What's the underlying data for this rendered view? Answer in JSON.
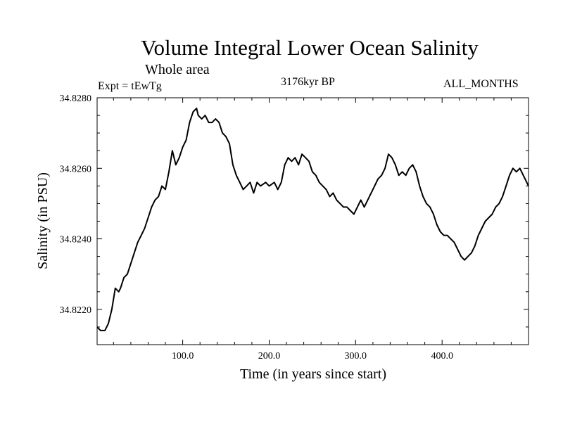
{
  "header": {
    "title": "Volume Integral Lower Ocean Salinity",
    "subtitle": "Whole area",
    "experiment": "Expt = tEwTg",
    "period": "3176kyr BP",
    "season": "ALL_MONTHS"
  },
  "chart_data": {
    "type": "line",
    "title": "Volume Integral Lower Ocean Salinity",
    "subtitle": "Whole area",
    "xlabel": "Time (in years since start)",
    "ylabel": "Salinity (in PSU)",
    "xlim": [
      1,
      500
    ],
    "ylim": [
      34.821,
      34.828
    ],
    "xticks": [
      100,
      200,
      300,
      400
    ],
    "xtick_labels": [
      "100.0",
      "200.0",
      "300.0",
      "400.0"
    ],
    "yticks": [
      34.822,
      34.824,
      34.826,
      34.828
    ],
    "ytick_labels": [
      "34.8220",
      "34.8240",
      "34.8260",
      "34.8280"
    ],
    "grid": false,
    "series": [
      {
        "name": "Salinity",
        "color": "#000000",
        "x": [
          1,
          5,
          10,
          14,
          18,
          22,
          26,
          28,
          32,
          36,
          40,
          44,
          48,
          52,
          56,
          60,
          64,
          68,
          72,
          76,
          80,
          84,
          88,
          92,
          96,
          100,
          104,
          108,
          112,
          116,
          118,
          122,
          126,
          130,
          134,
          138,
          142,
          146,
          150,
          154,
          158,
          162,
          166,
          170,
          174,
          178,
          182,
          186,
          190,
          196,
          200,
          206,
          210,
          214,
          218,
          222,
          226,
          230,
          234,
          238,
          242,
          246,
          250,
          254,
          258,
          262,
          266,
          270,
          274,
          278,
          282,
          286,
          290,
          294,
          298,
          302,
          306,
          310,
          314,
          318,
          322,
          326,
          330,
          334,
          338,
          342,
          346,
          350,
          354,
          358,
          362,
          366,
          370,
          374,
          378,
          382,
          386,
          390,
          394,
          398,
          402,
          406,
          410,
          414,
          418,
          422,
          426,
          430,
          434,
          438,
          442,
          446,
          450,
          454,
          458,
          462,
          466,
          470,
          474,
          478,
          482,
          486,
          490,
          494,
          498,
          500
        ],
        "values": [
          34.8215,
          34.8214,
          34.8214,
          34.8216,
          34.822,
          34.8226,
          34.8225,
          34.8226,
          34.8229,
          34.823,
          34.8233,
          34.8236,
          34.8239,
          34.8241,
          34.8243,
          34.8246,
          34.8249,
          34.8251,
          34.8252,
          34.8255,
          34.8254,
          34.8259,
          34.8265,
          34.8261,
          34.8263,
          34.8266,
          34.8268,
          34.8273,
          34.8276,
          34.8277,
          34.8275,
          34.8274,
          34.8275,
          34.8273,
          34.8273,
          34.8274,
          34.8273,
          34.827,
          34.8269,
          34.8267,
          34.8261,
          34.8258,
          34.8256,
          34.8254,
          34.8255,
          34.8256,
          34.8253,
          34.8256,
          34.8255,
          34.8256,
          34.8255,
          34.8256,
          34.8254,
          34.8256,
          34.8261,
          34.8263,
          34.8262,
          34.8263,
          34.8261,
          34.8264,
          34.8263,
          34.8262,
          34.8259,
          34.8258,
          34.8256,
          34.8255,
          34.8254,
          34.8252,
          34.8253,
          34.8251,
          34.825,
          34.8249,
          34.8249,
          34.8248,
          34.8247,
          34.8249,
          34.8251,
          34.8249,
          34.8251,
          34.8253,
          34.8255,
          34.8257,
          34.8258,
          34.826,
          34.8264,
          34.8263,
          34.8261,
          34.8258,
          34.8259,
          34.8258,
          34.826,
          34.8261,
          34.8259,
          34.8255,
          34.8252,
          34.825,
          34.8249,
          34.8247,
          34.8244,
          34.8242,
          34.8241,
          34.8241,
          34.824,
          34.8239,
          34.8237,
          34.8235,
          34.8234,
          34.8235,
          34.8236,
          34.8238,
          34.8241,
          34.8243,
          34.8245,
          34.8246,
          34.8247,
          34.8249,
          34.825,
          34.8252,
          34.8255,
          34.8258,
          34.826,
          34.8259,
          34.826,
          34.8258,
          34.8256,
          34.8255
        ]
      }
    ]
  }
}
